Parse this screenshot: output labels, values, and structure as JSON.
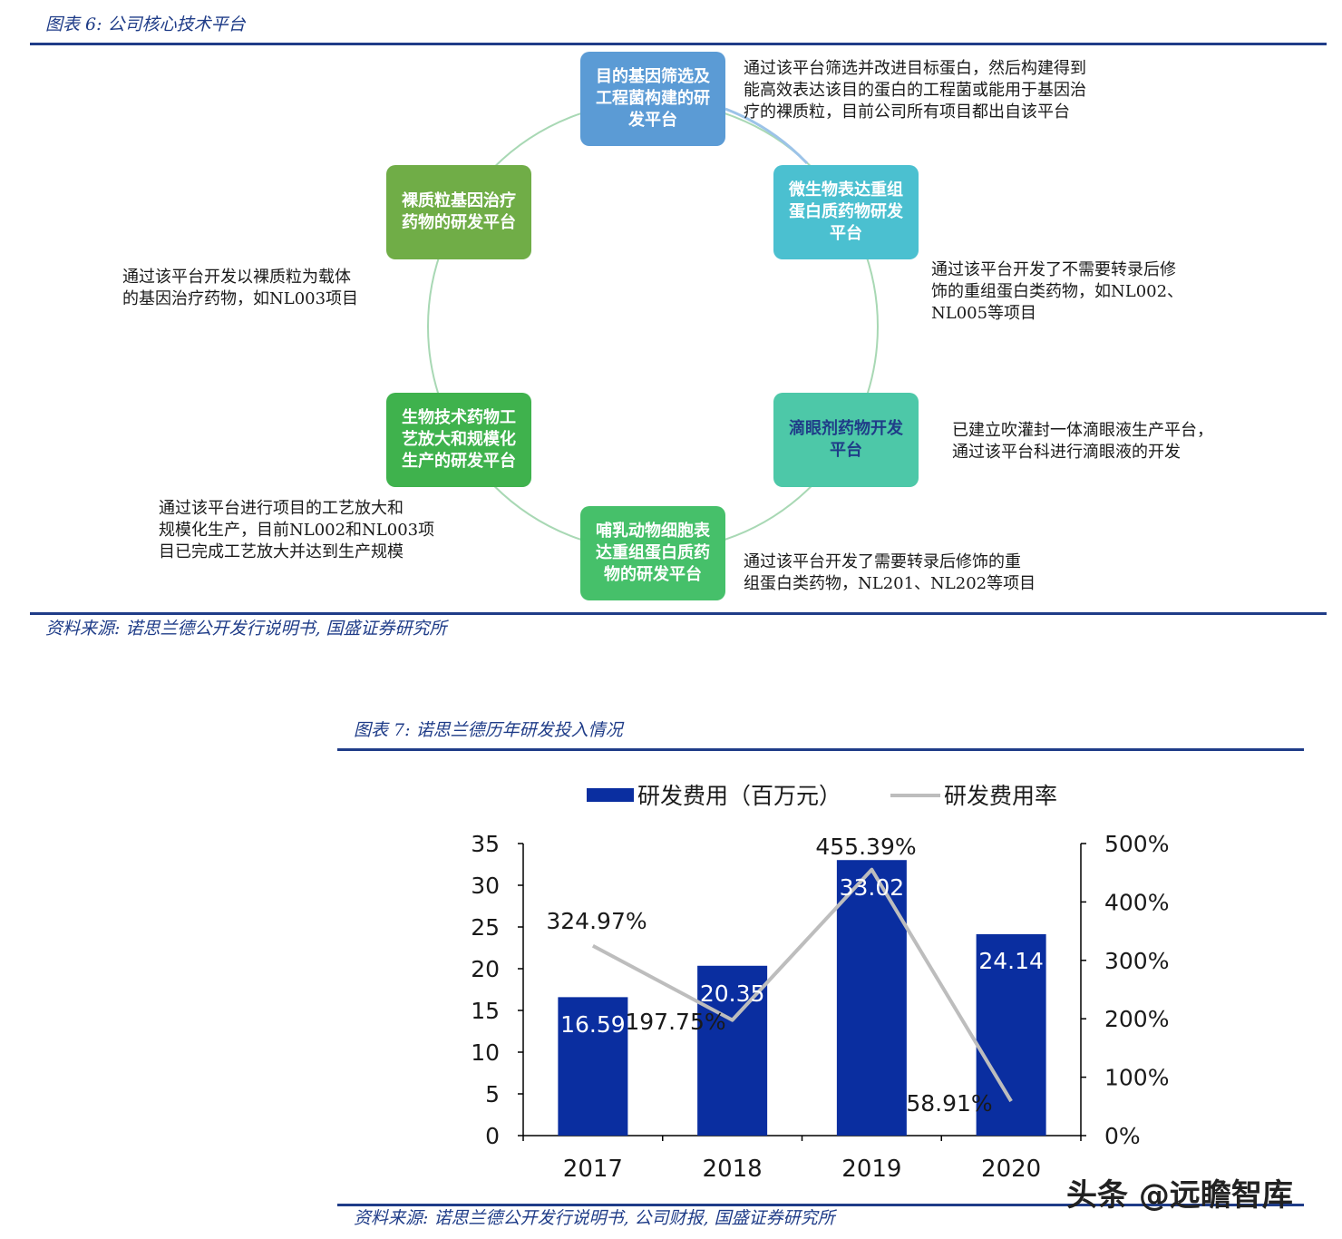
{
  "figure6": {
    "caption": "图表 6: 公司核心技术平台",
    "source": "资料来源: 诺思兰德公开发行说明书, 国盛证券研究所",
    "nodes": [
      {
        "label": "目的基因筛选及\n工程菌构建的研\n发平台",
        "color": "#5b9bd5",
        "desc": "通过该平台筛选并改进目标蛋白，然后构建得到\n能高效表达该目的蛋白的工程菌或能用于基因治\n疗的裸质粒，目前公司所有项目都出自该平台"
      },
      {
        "label": "微生物表达重组\n蛋白质药物研发\n平台",
        "color": "#4bc0d0",
        "desc": "通过该平台开发了不需要转录后修\n饰的重组蛋白类药物，如NL002、\nNL005等项目"
      },
      {
        "label": "滴眼剂药物开发\n平台",
        "color": "#4dc8a8",
        "label_color": "#1f3c88",
        "desc": "已建立吹灌封一体滴眼液生产平台，\n通过该平台科进行滴眼液的开发"
      },
      {
        "label": "哺乳动物细胞表\n达重组蛋白质药\n物的研发平台",
        "color": "#46c06a",
        "desc": "通过该平台开发了需要转录后修饰的重\n组蛋白类药物，NL201、NL202等项目"
      },
      {
        "label": "生物技术药物工\n艺放大和规模化\n生产的研发平台",
        "color": "#3fb24d",
        "desc": "通过该平台进行项目的工艺放大和\n规模化生产，目前NL002和NL003项\n目已完成工艺放大并达到生产规模"
      },
      {
        "label": "裸质粒基因治疗\n药物的研发平台",
        "color": "#70ad47",
        "desc": "通过该平台开发以裸质粒为载体\n的基因治疗药物，如NL003项目"
      }
    ]
  },
  "figure7": {
    "caption": "图表 7: 诺思兰德历年研发投入情况",
    "source": "资料来源: 诺思兰德公开发行说明书, 公司财报, 国盛证券研究所",
    "watermark": "头条 @远瞻智库"
  },
  "chart_data": {
    "type": "bar",
    "categories": [
      "2017",
      "2018",
      "2019",
      "2020"
    ],
    "series": [
      {
        "name": "研发费用（百万元）",
        "type": "bar",
        "axis": "left",
        "color": "#0a2ea0",
        "values": [
          16.59,
          20.35,
          33.02,
          24.14
        ],
        "labels": [
          "16.59",
          "20.35",
          "33.02",
          "24.14"
        ]
      },
      {
        "name": "研发费用率",
        "type": "line",
        "axis": "right",
        "color": "#bdbdbd",
        "values": [
          324.97,
          197.75,
          455.39,
          58.91
        ],
        "labels": [
          "324.97%",
          "197.75%",
          "455.39%",
          "58.91%"
        ]
      }
    ],
    "ylim_left": [
      0,
      35
    ],
    "yticks_left": [
      "0",
      "5",
      "10",
      "15",
      "20",
      "25",
      "30",
      "35"
    ],
    "ylim_right": [
      0,
      500
    ],
    "yticks_right": [
      "0%",
      "100%",
      "200%",
      "300%",
      "400%",
      "500%"
    ],
    "legend": "top",
    "grid": false
  }
}
